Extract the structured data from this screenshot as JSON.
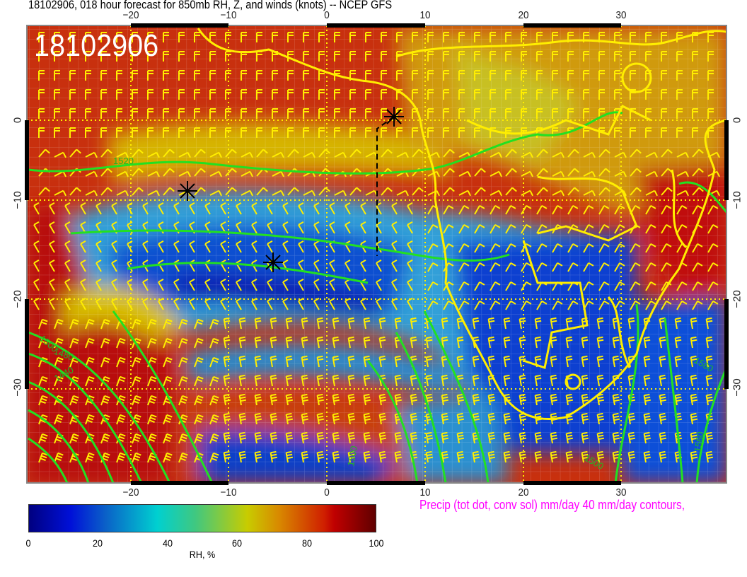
{
  "header": {
    "title": "18102906, 018 hour forecast for 850mb RH, Z, and winds (knots)  -- NCEP GFS"
  },
  "map": {
    "stamp": "18102906",
    "lon_labels": [
      "−20",
      "−10",
      "0",
      "10",
      "20",
      "30"
    ],
    "lat_labels": [
      "0",
      "−10",
      "−20",
      "−30"
    ],
    "contour_labels": [
      "1520",
      "1500",
      "1480",
      "1440",
      "1560",
      "1560",
      "1500",
      "1500"
    ],
    "colors": {
      "contour": "#22e022",
      "barbs": "#ffee00",
      "coastline": "#ffee00",
      "markers": "#000000"
    },
    "markers": [
      "asterisk",
      "asterisk",
      "asterisk"
    ]
  },
  "colorbar": {
    "ticks": [
      "0",
      "20",
      "40",
      "60",
      "80",
      "100"
    ],
    "label": "RH, %",
    "range": [
      0,
      100
    ]
  },
  "precip_note": "Precip (tot dot, conv sol) mm/day 40 mm/day contours,"
}
